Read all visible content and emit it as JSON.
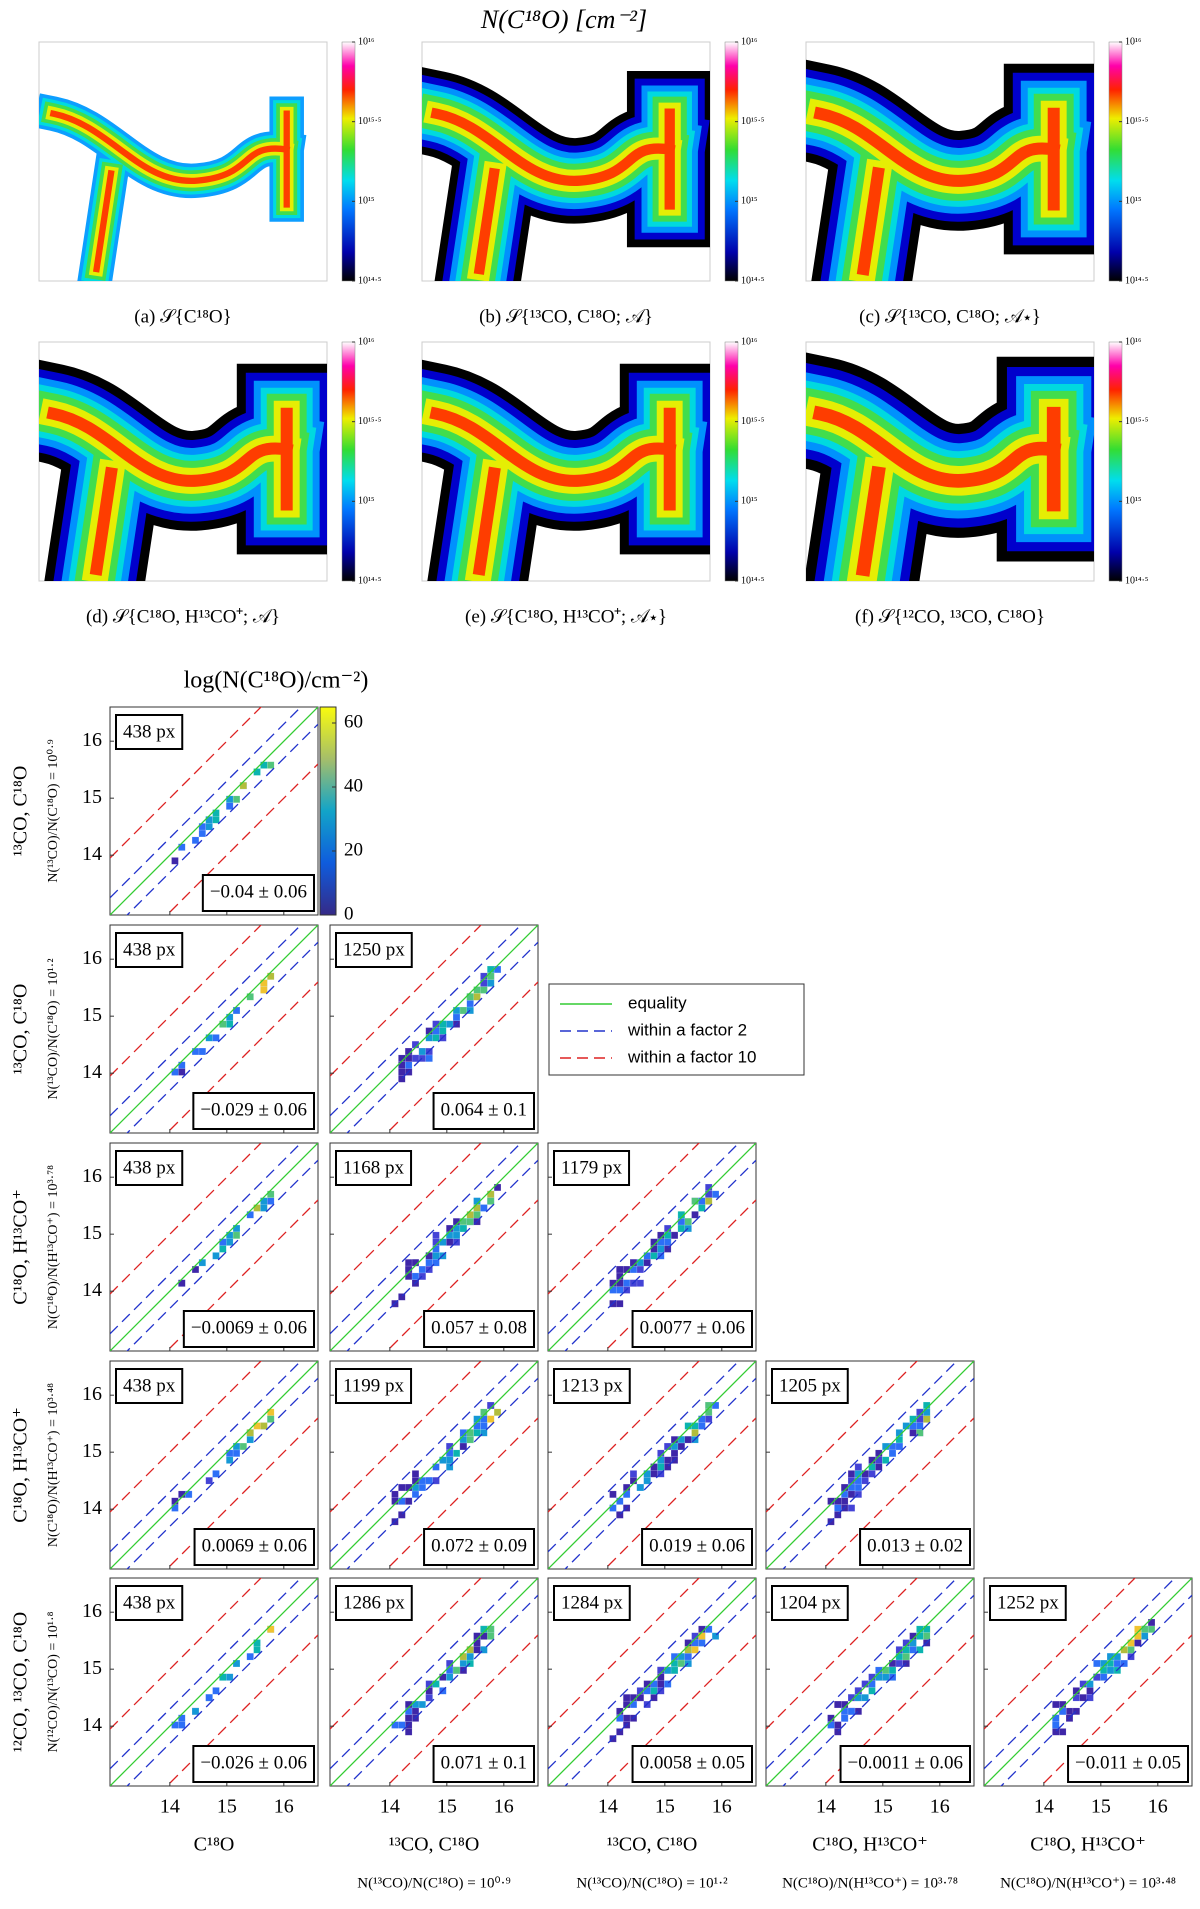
{
  "chart_data": [
    {
      "type": "map-grid",
      "title": "N(C¹⁸O) [cm⁻²]",
      "colorbar": {
        "lim": [
          14.5,
          16
        ],
        "ticks": [
          {
            "value": 14.5,
            "label": "10¹⁴·⁵"
          },
          {
            "value": 15,
            "label": "10¹⁵"
          },
          {
            "value": 15.5,
            "label": "10¹⁵·⁵"
          },
          {
            "value": 16,
            "label": "10¹⁶"
          }
        ]
      },
      "panels": [
        {
          "caption": "(a) 𝒮{C¹⁸O}"
        },
        {
          "caption": "(b) 𝒮{¹³CO, C¹⁸O; 𝒜}"
        },
        {
          "caption": "(c) 𝒮{¹³CO, C¹⁸O; 𝒜⋆}"
        },
        {
          "caption": "(d) 𝒮{C¹⁸O, H¹³CO⁺; 𝒜}"
        },
        {
          "caption": "(e) 𝒮{C¹⁸O, H¹³CO⁺; 𝒜⋆}"
        },
        {
          "caption": "(f) 𝒮{¹²CO, ¹³CO, C¹⁸O}"
        }
      ]
    },
    {
      "type": "hist2d-grid",
      "title": "log(N(C¹⁸O)/cm⁻²)",
      "lim": [
        12.95,
        16.6
      ],
      "ticks": [
        14,
        15,
        16
      ],
      "colorbar": {
        "lim": [
          0,
          65
        ],
        "ticks": [
          0,
          20,
          40,
          60
        ]
      },
      "legend": [
        {
          "name": "equality",
          "color": "#33cc33"
        },
        {
          "name": "within a factor 2",
          "color": "#2233cc",
          "factor": 2
        },
        {
          "name": "within a factor 10",
          "color": "#dd2222",
          "factor": 10
        }
      ],
      "rows": [
        {
          "label": [
            "¹³CO, C¹⁸O",
            "N(¹³CO)/N(C¹⁸O) = 10⁰·⁹"
          ],
          "panels": [
            {
              "pixels": "438 px",
              "stat": "−0.04 ± 0.06"
            }
          ]
        },
        {
          "label": [
            "¹³CO, C¹⁸O",
            "N(¹³CO)/N(C¹⁸O) = 10¹·²"
          ],
          "panels": [
            {
              "pixels": "438 px",
              "stat": "−0.029 ± 0.06"
            },
            {
              "pixels": "1250 px",
              "stat": "0.064 ± 0.1"
            }
          ]
        },
        {
          "label": [
            "C¹⁸O, H¹³CO⁺",
            "N(C¹⁸O)/N(H¹³CO⁺) = 10³·⁷⁸"
          ],
          "panels": [
            {
              "pixels": "438 px",
              "stat": "−0.0069 ± 0.06"
            },
            {
              "pixels": "1168 px",
              "stat": "0.057 ± 0.08"
            },
            {
              "pixels": "1179 px",
              "stat": "0.0077 ± 0.06"
            }
          ]
        },
        {
          "label": [
            "C¹⁸O, H¹³CO⁺",
            "N(C¹⁸O)/N(H¹³CO⁺) = 10³·⁴⁸"
          ],
          "panels": [
            {
              "pixels": "438 px",
              "stat": "0.0069 ± 0.06"
            },
            {
              "pixels": "1199 px",
              "stat": "0.072 ± 0.09"
            },
            {
              "pixels": "1213 px",
              "stat": "0.019 ± 0.06"
            },
            {
              "pixels": "1205 px",
              "stat": "0.013 ± 0.02"
            }
          ]
        },
        {
          "label": [
            "¹²CO, ¹³CO, C¹⁸O",
            "N(¹²CO)/N(¹³CO) = 10¹·⁸"
          ],
          "panels": [
            {
              "pixels": "438 px",
              "stat": "−0.026 ± 0.06"
            },
            {
              "pixels": "1286 px",
              "stat": "0.071 ± 0.1"
            },
            {
              "pixels": "1284 px",
              "stat": "0.0058 ± 0.05"
            },
            {
              "pixels": "1204 px",
              "stat": "−0.0011 ± 0.06"
            },
            {
              "pixels": "1252 px",
              "stat": "−0.011 ± 0.05"
            }
          ]
        }
      ],
      "x_labels": [
        [
          "C¹⁸O"
        ],
        [
          "¹³CO, C¹⁸O",
          "N(¹³CO)/N(C¹⁸O) = 10⁰·⁹"
        ],
        [
          "¹³CO, C¹⁸O",
          "N(¹³CO)/N(C¹⁸O) = 10¹·²"
        ],
        [
          "C¹⁸O, H¹³CO⁺",
          "N(C¹⁸O)/N(H¹³CO⁺) = 10³·⁷⁸"
        ],
        [
          "C¹⁸O, H¹³CO⁺",
          "N(C¹⁸O)/N(H¹³CO⁺) = 10³·⁴⁸"
        ]
      ]
    }
  ]
}
